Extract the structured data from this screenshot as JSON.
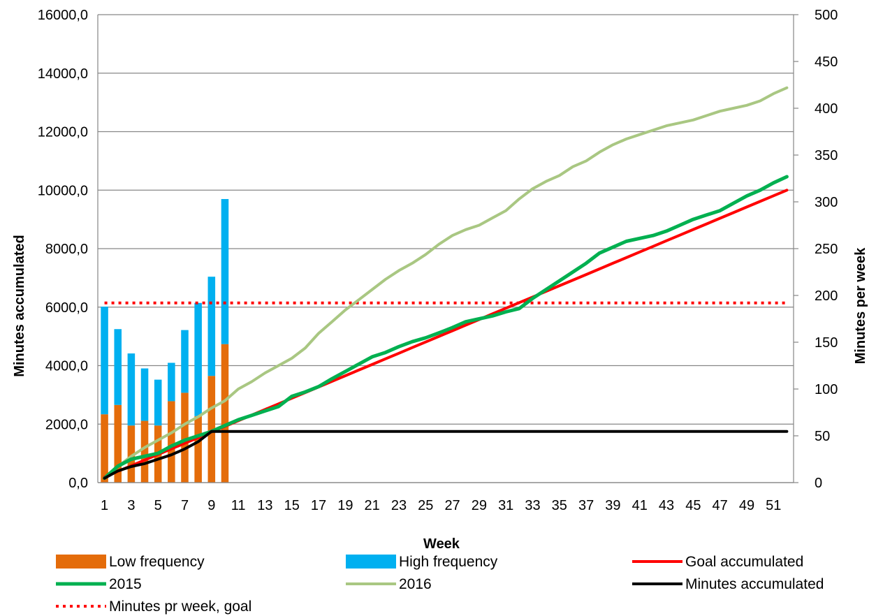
{
  "chart_data": {
    "type": "bar",
    "xlabel": "Week",
    "ylabel": "Minutes accumulated",
    "y2label": "Minutes per week",
    "ylim": [
      0,
      16000
    ],
    "y2lim": [
      0,
      500
    ],
    "grid": true,
    "legend_position": "bottom",
    "x": [
      1,
      2,
      3,
      4,
      5,
      6,
      7,
      8,
      9,
      10,
      11,
      12,
      13,
      14,
      15,
      16,
      17,
      18,
      19,
      20,
      21,
      22,
      23,
      24,
      25,
      26,
      27,
      28,
      29,
      30,
      31,
      32,
      33,
      34,
      35,
      36,
      37,
      38,
      39,
      40,
      41,
      42,
      43,
      44,
      45,
      46,
      47,
      48,
      49,
      50,
      51,
      52
    ],
    "y_ticks": [
      "0,0",
      "2000,0",
      "4000,0",
      "6000,0",
      "8000,0",
      "10000,0",
      "12000,0",
      "14000,0",
      "16000,0"
    ],
    "y2_ticks": [
      "0",
      "50",
      "100",
      "150",
      "200",
      "250",
      "300",
      "350",
      "400",
      "450",
      "500"
    ],
    "x_ticks": [
      "1",
      "3",
      "5",
      "7",
      "9",
      "11",
      "13",
      "15",
      "17",
      "19",
      "21",
      "23",
      "25",
      "27",
      "29",
      "31",
      "33",
      "35",
      "37",
      "39",
      "41",
      "43",
      "45",
      "47",
      "49",
      "51"
    ],
    "bar_series": [
      {
        "name": "Low frequency",
        "axis": "y2",
        "color": "#e46c0a",
        "values": [
          73,
          83,
          61,
          66,
          61,
          87,
          96,
          71,
          114,
          148
        ]
      },
      {
        "name": "High frequency",
        "axis": "y2",
        "color": "#00b0f0",
        "values": [
          115,
          81,
          77,
          56,
          49,
          41,
          67,
          121,
          106,
          155
        ]
      }
    ],
    "line_series": [
      {
        "name": "Goal accumulated",
        "axis": "y",
        "color": "#ff0000",
        "style": "solid",
        "values": [
          192,
          385,
          577,
          769,
          962,
          1154,
          1346,
          1538,
          1731,
          1923,
          2115,
          2308,
          2500,
          2692,
          2885,
          3077,
          3269,
          3462,
          3654,
          3846,
          4038,
          4231,
          4423,
          4615,
          4808,
          5000,
          5192,
          5385,
          5577,
          5769,
          5962,
          6154,
          6346,
          6538,
          6731,
          6923,
          7115,
          7308,
          7500,
          7692,
          7885,
          8077,
          8269,
          8462,
          8654,
          8846,
          9038,
          9231,
          9423,
          9615,
          9808,
          10000
        ]
      },
      {
        "name": "2015",
        "axis": "y",
        "color": "#00b050",
        "style": "solid",
        "values": [
          150,
          560,
          800,
          900,
          1000,
          1250,
          1450,
          1600,
          1750,
          1950,
          2150,
          2300,
          2450,
          2600,
          2950,
          3100,
          3280,
          3550,
          3800,
          4050,
          4300,
          4450,
          4650,
          4820,
          4950,
          5120,
          5300,
          5500,
          5600,
          5700,
          5840,
          5950,
          6300,
          6600,
          6900,
          7200,
          7500,
          7850,
          8050,
          8250,
          8350,
          8450,
          8600,
          8800,
          9000,
          9150,
          9300,
          9550,
          9800,
          10000,
          10250,
          10460
        ]
      },
      {
        "name": "2016",
        "axis": "y",
        "color": "#a9c782",
        "style": "solid",
        "values": [
          150,
          550,
          900,
          1200,
          1450,
          1700,
          2000,
          2250,
          2550,
          2800,
          3200,
          3450,
          3750,
          4000,
          4250,
          4600,
          5100,
          5500,
          5900,
          6250,
          6600,
          6950,
          7250,
          7500,
          7800,
          8150,
          8450,
          8650,
          8800,
          9050,
          9300,
          9700,
          10050,
          10300,
          10500,
          10800,
          11000,
          11300,
          11550,
          11750,
          11900,
          12050,
          12200,
          12300,
          12400,
          12550,
          12700,
          12800,
          12900,
          13050,
          13300,
          13500
        ]
      },
      {
        "name": "Minutes accumulated",
        "axis": "y",
        "color": "#000000",
        "style": "solid",
        "values": [
          150,
          400,
          550,
          650,
          800,
          950,
          1150,
          1400,
          1750,
          1750,
          1750,
          1750,
          1750,
          1750,
          1750,
          1750,
          1750,
          1750,
          1750,
          1750,
          1750,
          1750,
          1750,
          1750,
          1750,
          1750,
          1750,
          1750,
          1750,
          1750,
          1750,
          1750,
          1750,
          1750,
          1750,
          1750,
          1750,
          1750,
          1750,
          1750,
          1750,
          1750,
          1750,
          1750,
          1750,
          1750,
          1750,
          1750,
          1750,
          1750,
          1750,
          1750
        ]
      },
      {
        "name": "Minutes pr week, goal",
        "axis": "y2",
        "color": "#ff0000",
        "style": "dotted",
        "values": [
          192,
          192,
          192,
          192,
          192,
          192,
          192,
          192,
          192,
          192,
          192,
          192,
          192,
          192,
          192,
          192,
          192,
          192,
          192,
          192,
          192,
          192,
          192,
          192,
          192,
          192,
          192,
          192,
          192,
          192,
          192,
          192,
          192,
          192,
          192,
          192,
          192,
          192,
          192,
          192,
          192,
          192,
          192,
          192,
          192,
          192,
          192,
          192,
          192,
          192,
          192,
          192
        ]
      }
    ]
  }
}
